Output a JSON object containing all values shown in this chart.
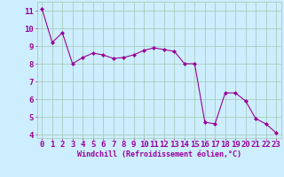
{
  "x": [
    0,
    1,
    2,
    3,
    4,
    5,
    6,
    7,
    8,
    9,
    10,
    11,
    12,
    13,
    14,
    15,
    16,
    17,
    18,
    19,
    20,
    21,
    22,
    23
  ],
  "y": [
    11.1,
    9.2,
    9.75,
    8.0,
    8.35,
    8.6,
    8.5,
    8.3,
    8.35,
    8.5,
    8.75,
    8.9,
    8.8,
    8.7,
    8.0,
    8.0,
    4.7,
    4.6,
    6.35,
    6.35,
    5.9,
    4.9,
    4.6,
    4.1
  ],
  "line_color": "#990099",
  "marker": "D",
  "marker_size": 2.0,
  "bg_color": "#cceeff",
  "grid_color": "#aaccbb",
  "xlabel": "Windchill (Refroidissement éolien,°C)",
  "xlim_min": -0.5,
  "xlim_max": 23.5,
  "ylim_min": 3.8,
  "ylim_max": 11.5,
  "xtick_labels": [
    "0",
    "1",
    "2",
    "3",
    "4",
    "5",
    "6",
    "7",
    "8",
    "9",
    "10",
    "11",
    "12",
    "13",
    "14",
    "15",
    "16",
    "17",
    "18",
    "19",
    "20",
    "21",
    "22",
    "23"
  ],
  "ytick_values": [
    4,
    5,
    6,
    7,
    8,
    9,
    10,
    11
  ],
  "font_color": "#990099",
  "tick_color": "#990099",
  "label_fontsize": 6.0,
  "tick_fontsize": 6.5
}
